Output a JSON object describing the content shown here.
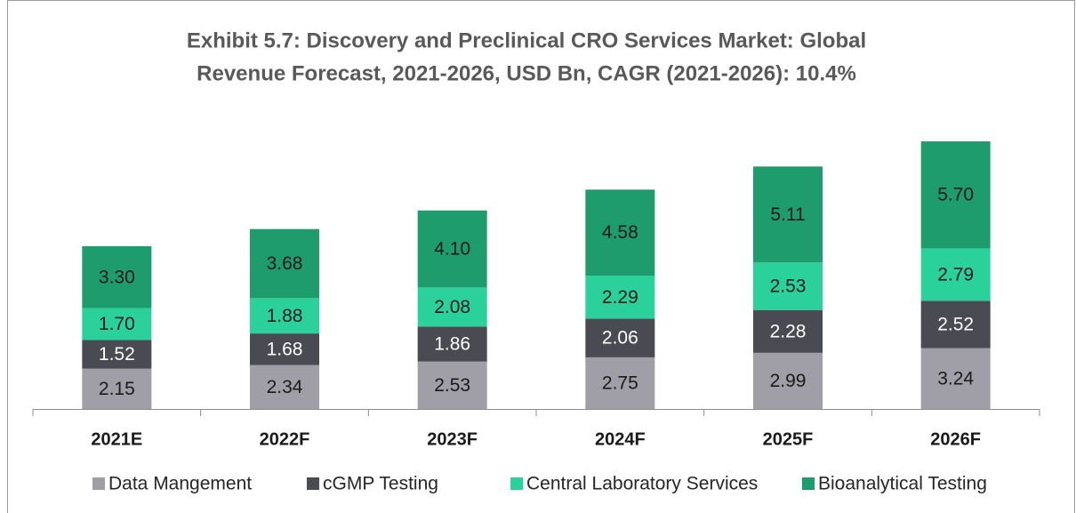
{
  "chart_data": {
    "type": "stacked_bar",
    "title": [
      "Exhibit 5.7: Discovery and Preclinical CRO Services Market: Global",
      "Revenue Forecast, 2021-2026, USD Bn, CAGR (2021-2026): 10.4%"
    ],
    "categories": [
      "2021E",
      "2022F",
      "2023F",
      "2024F",
      "2025F",
      "2026F"
    ],
    "series": [
      {
        "name": "Data Mangement",
        "color": "#a09fa8",
        "label_color": "#1a1a1a",
        "values": [
          2.15,
          2.34,
          2.53,
          2.75,
          2.99,
          3.24
        ],
        "value_labels": [
          "2.15",
          "2.34",
          "2.53",
          "2.75",
          "2.99",
          "3.24"
        ]
      },
      {
        "name": "cGMP Testing",
        "color": "#4a4a52",
        "label_color": "#ffffff",
        "values": [
          1.52,
          1.68,
          1.86,
          2.06,
          2.28,
          2.52
        ],
        "value_labels": [
          "1.52",
          "1.68",
          "1.86",
          "2.06",
          "2.28",
          "2.52"
        ]
      },
      {
        "name": "Central Laboratory Services",
        "color": "#2bd19b",
        "label_color": "#1a1a1a",
        "values": [
          1.7,
          1.88,
          2.08,
          2.29,
          2.53,
          2.79
        ],
        "value_labels": [
          "1.70",
          "1.88",
          "2.08",
          "2.29",
          "2.53",
          "2.79"
        ]
      },
      {
        "name": "Bioanalytical Testing",
        "color": "#1e9c6e",
        "label_color": "#1a1a1a",
        "values": [
          3.3,
          3.68,
          4.1,
          4.58,
          5.11,
          5.7
        ],
        "value_labels": [
          "3.30",
          "3.68",
          "4.10",
          "4.58",
          "5.11",
          "5.70"
        ]
      }
    ],
    "legend": "bottom"
  }
}
